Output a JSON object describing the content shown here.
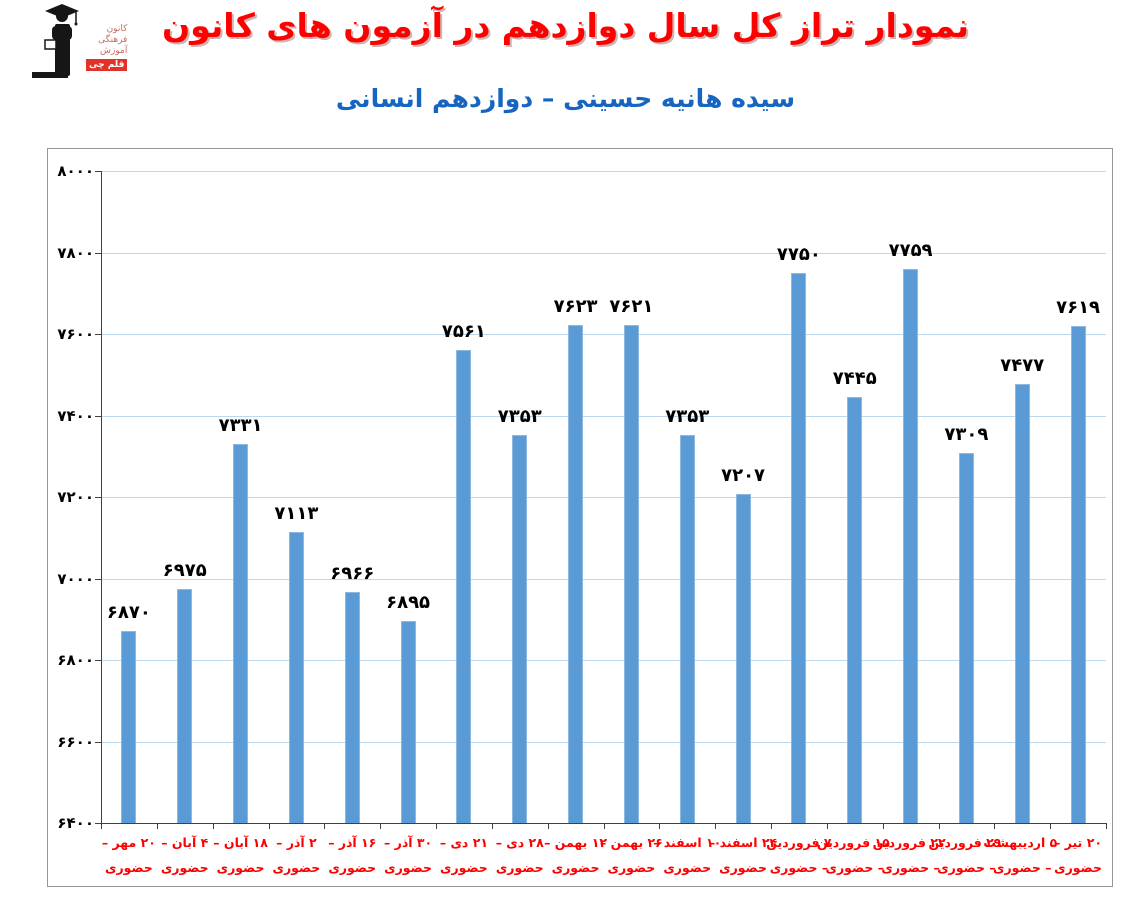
{
  "header": {
    "logo": {
      "org_lines": [
        "کانون",
        "فرهنگی",
        "آموزش"
      ],
      "badge": "قلم چی"
    },
    "title": "نمودار تراز کل سال دوازدهم در آزمون های کانون",
    "subtitle": "سیده هانیه حسینی – دوازدهم انسانی"
  },
  "colors": {
    "title": "#fe0000",
    "subtitle": "#1666c1",
    "bar": "#5b9bd5",
    "gridline": "#bdd7ee",
    "axis": "#404040",
    "x_labels": "#fe0000",
    "value_labels": "#000000",
    "logo_badge_bg": "#e23128"
  },
  "chart_data": {
    "type": "bar",
    "title": "نمودار تراز کل سال دوازدهم در آزمون های کانون",
    "subtitle": "سیده هانیه حسینی – دوازدهم انسانی",
    "xlabel": "",
    "ylabel": "",
    "ylim": [
      6400,
      8000
    ],
    "ytick_step": 200,
    "grid": true,
    "legend": "none",
    "yticks": [
      {
        "value": 6400,
        "label_fa": "۶۴۰۰"
      },
      {
        "value": 6600,
        "label_fa": "۶۶۰۰"
      },
      {
        "value": 6800,
        "label_fa": "۶۸۰۰"
      },
      {
        "value": 7000,
        "label_fa": "۷۰۰۰"
      },
      {
        "value": 7200,
        "label_fa": "۷۲۰۰"
      },
      {
        "value": 7400,
        "label_fa": "۷۴۰۰"
      },
      {
        "value": 7600,
        "label_fa": "۷۶۰۰"
      },
      {
        "value": 7800,
        "label_fa": "۷۸۰۰"
      },
      {
        "value": 8000,
        "label_fa": "۸۰۰۰"
      }
    ],
    "categories": [
      {
        "date": "۲۰ مهر",
        "mode": "حضوری",
        "line1": "۲۰ مهر –",
        "line2": "حضوری",
        "value": 6870,
        "value_fa": "۶۸۷۰"
      },
      {
        "date": "۴ آبان",
        "mode": "حضوری",
        "line1": "۴ آبان –",
        "line2": "حضوری",
        "value": 6975,
        "value_fa": "۶۹۷۵"
      },
      {
        "date": "۱۸ آبان",
        "mode": "حضوری",
        "line1": "۱۸ آبان –",
        "line2": "حضوری",
        "value": 7331,
        "value_fa": "۷۳۳۱"
      },
      {
        "date": "۲ آذر",
        "mode": "حضوری",
        "line1": "۲ آذر –",
        "line2": "حضوری",
        "value": 7113,
        "value_fa": "۷۱۱۳"
      },
      {
        "date": "۱۶ آذر",
        "mode": "حضوری",
        "line1": "۱۶ آذر –",
        "line2": "حضوری",
        "value": 6966,
        "value_fa": "۶۹۶۶"
      },
      {
        "date": "۳۰ آذر",
        "mode": "حضوری",
        "line1": "۳۰ آذر –",
        "line2": "حضوری",
        "value": 6895,
        "value_fa": "۶۸۹۵"
      },
      {
        "date": "۲۱ دی",
        "mode": "حضوری",
        "line1": "۲۱ دی –",
        "line2": "حضوری",
        "value": 7561,
        "value_fa": "۷۵۶۱"
      },
      {
        "date": "۲۸ دی",
        "mode": "حضوری",
        "line1": "۲۸ دی –",
        "line2": "حضوری",
        "value": 7353,
        "value_fa": "۷۳۵۳"
      },
      {
        "date": "۱۲ بهمن",
        "mode": "حضوری",
        "line1": "۱۲ بهمن –",
        "line2": "حضوری",
        "value": 7623,
        "value_fa": "۷۶۲۳"
      },
      {
        "date": "۲۶ بهمن",
        "mode": "حضوری",
        "line1": "۲۶ بهمن –",
        "line2": "حضوری",
        "value": 7621,
        "value_fa": "۷۶۲۱"
      },
      {
        "date": "۱۰ اسفند",
        "mode": "حضوری",
        "line1": "۱۰ اسفند –",
        "line2": "حضوری",
        "value": 7353,
        "value_fa": "۷۳۵۳"
      },
      {
        "date": "۲۴ اسفند",
        "mode": "حضوری",
        "line1": "۲۴ اسفند –",
        "line2": "حضوری",
        "value": 7207,
        "value_fa": "۷۲۰۷"
      },
      {
        "date": "۷ فروردین",
        "mode": "حضوری",
        "line1": "۷ فروردین",
        "line2": "– حضوری",
        "value": 7750,
        "value_fa": "۷۷۵۰"
      },
      {
        "date": "۱۵ فروردین",
        "mode": "حضوری",
        "line1": "۱۵ فروردین",
        "line2": "– حضوری",
        "value": 7445,
        "value_fa": "۷۴۴۵"
      },
      {
        "date": "۲۲ فروردین",
        "mode": "حضوری",
        "line1": "۲۲ فروردین",
        "line2": "– حضوری",
        "value": 7759,
        "value_fa": "۷۷۵۹"
      },
      {
        "date": "۲۹ فروردین",
        "mode": "حضوری",
        "line1": "۲۹ فروردین",
        "line2": "– حضوری",
        "value": 7309,
        "value_fa": "۷۳۰۹"
      },
      {
        "date": "۵ اردیبهشت",
        "mode": "حضوری",
        "line1": "۵ اردیبهشت",
        "line2": "– حضوری",
        "value": 7477,
        "value_fa": "۷۴۷۷"
      },
      {
        "date": "۲۰ تیر",
        "mode": "حضوری",
        "line1": "۲۰ تیر –",
        "line2": "حضوری",
        "value": 7619,
        "value_fa": "۷۶۱۹"
      }
    ]
  }
}
